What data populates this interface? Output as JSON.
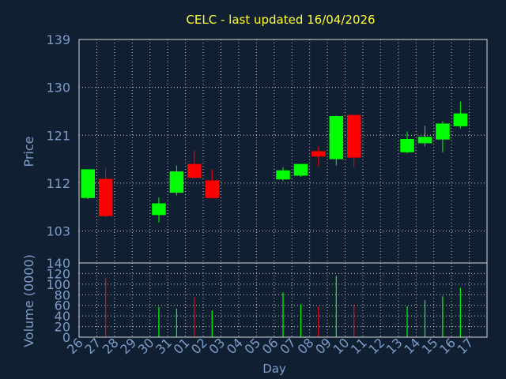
{
  "chart_data": [
    {
      "type": "candlestick",
      "title": "CELC - last updated 16/04/2026",
      "ylabel": "Price",
      "ylim": [
        97,
        139
      ],
      "yticks": [
        103,
        112,
        121,
        130,
        139
      ],
      "grid": true,
      "up_color": "#00ff00",
      "down_color": "#ff0000",
      "categories": [
        "26",
        "27",
        "28",
        "29",
        "30",
        "31",
        "01",
        "02",
        "03",
        "04",
        "05",
        "06",
        "07",
        "08",
        "09",
        "10",
        "11",
        "12",
        "13",
        "14",
        "15",
        "16",
        "17"
      ],
      "candles": [
        {
          "day": "26",
          "open": 109.2,
          "high": 114.6,
          "low": 109.0,
          "close": 114.6
        },
        {
          "day": "27",
          "open": 112.8,
          "high": 114.8,
          "low": 105.6,
          "close": 105.8
        },
        {
          "day": "30",
          "open": 106.0,
          "high": 109.3,
          "low": 104.6,
          "close": 108.2
        },
        {
          "day": "31",
          "open": 110.2,
          "high": 115.3,
          "low": 109.7,
          "close": 114.2
        },
        {
          "day": "01",
          "open": 115.6,
          "high": 118.1,
          "low": 112.9,
          "close": 113.0
        },
        {
          "day": "02",
          "open": 112.5,
          "high": 114.6,
          "low": 109.1,
          "close": 109.2
        },
        {
          "day": "06",
          "open": 112.7,
          "high": 115.0,
          "low": 112.4,
          "close": 114.4
        },
        {
          "day": "07",
          "open": 113.4,
          "high": 115.6,
          "low": 113.2,
          "close": 115.6
        },
        {
          "day": "08",
          "open": 118.0,
          "high": 118.9,
          "low": 115.1,
          "close": 117.0
        },
        {
          "day": "09",
          "open": 116.5,
          "high": 124.7,
          "low": 115.3,
          "close": 124.6
        },
        {
          "day": "10",
          "open": 124.8,
          "high": 124.9,
          "low": 115.0,
          "close": 116.8
        },
        {
          "day": "13",
          "open": 117.8,
          "high": 121.7,
          "low": 117.6,
          "close": 120.3
        },
        {
          "day": "14",
          "open": 119.5,
          "high": 122.8,
          "low": 118.9,
          "close": 120.7
        },
        {
          "day": "15",
          "open": 120.2,
          "high": 123.6,
          "low": 117.8,
          "close": 123.2
        },
        {
          "day": "16",
          "open": 122.7,
          "high": 127.3,
          "low": 122.3,
          "close": 125.1
        }
      ]
    },
    {
      "type": "bar",
      "ylabel": "Volume (0000)",
      "xlabel": "Day",
      "ylim": [
        0,
        140
      ],
      "yticks": [
        0,
        20,
        40,
        60,
        80,
        100,
        120,
        140
      ],
      "grid": true,
      "categories": [
        "26",
        "27",
        "28",
        "29",
        "30",
        "31",
        "01",
        "02",
        "03",
        "04",
        "05",
        "06",
        "07",
        "08",
        "09",
        "10",
        "11",
        "12",
        "13",
        "14",
        "15",
        "16",
        "17"
      ],
      "bars": [
        {
          "day": "27",
          "value": 112,
          "color": "#ff0000"
        },
        {
          "day": "30",
          "value": 57,
          "color": "#00ff00"
        },
        {
          "day": "31",
          "value": 54,
          "color": "#00ff00"
        },
        {
          "day": "01",
          "value": 76,
          "color": "#ff0000"
        },
        {
          "day": "02",
          "value": 50,
          "color": "#00ff00"
        },
        {
          "day": "06",
          "value": 84,
          "color": "#00ff00"
        },
        {
          "day": "07",
          "value": 62,
          "color": "#00ff00"
        },
        {
          "day": "08",
          "value": 58,
          "color": "#ff0000"
        },
        {
          "day": "09",
          "value": 115,
          "color": "#00ff00"
        },
        {
          "day": "10",
          "value": 62,
          "color": "#ff0000"
        },
        {
          "day": "13",
          "value": 58,
          "color": "#00ff00"
        },
        {
          "day": "14",
          "value": 70,
          "color": "#00ff00"
        },
        {
          "day": "15",
          "value": 77,
          "color": "#00ff00"
        },
        {
          "day": "16",
          "value": 93,
          "color": "#00ff00"
        }
      ]
    }
  ]
}
